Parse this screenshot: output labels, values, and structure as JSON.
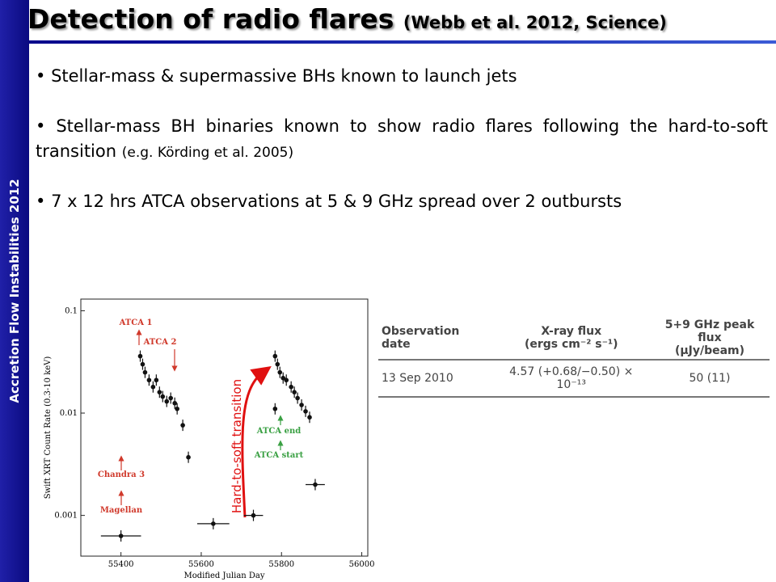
{
  "sidebar": "Accretion Flow Instabilities 2012",
  "header": {
    "title": "Detection of radio flares",
    "citation": "(Webb et al. 2012, Science)"
  },
  "bullets": [
    {
      "text": "Stellar-mass & supermassive BHs known to launch jets"
    },
    {
      "text": "Stellar-mass BH binaries known to show radio flares following the hard-to-soft transition",
      "note": "(e.g. Körding et al. 2005)"
    },
    {
      "text": "7 x 12 hrs ATCA  observations at 5 & 9 GHz spread over 2 outbursts"
    }
  ],
  "chart_data": {
    "type": "scatter",
    "log_y": true,
    "x_label": "Modified Julian Day",
    "y_label": "Swift XRT Count Rate (0.3-10 keV)",
    "color": "#111111",
    "x": [
      55448,
      55454,
      55460,
      55470,
      55480,
      55488,
      55496,
      55504,
      55514,
      55524,
      55534,
      55540,
      55554,
      55568,
      55400,
      55630,
      55730,
      55784,
      55790,
      55796,
      55804,
      55812,
      55824,
      55832,
      55840,
      55850,
      55860,
      55870,
      55784,
      55884
    ],
    "y": [
      0.036,
      0.03,
      0.025,
      0.021,
      0.018,
      0.021,
      0.016,
      0.0145,
      0.013,
      0.014,
      0.0125,
      0.011,
      0.0076,
      0.0037,
      0.00063,
      0.00083,
      0.001,
      0.036,
      0.03,
      0.025,
      0.022,
      0.021,
      0.018,
      0.016,
      0.014,
      0.012,
      0.0104,
      0.0091,
      0.011,
      0.002
    ],
    "xerr": [
      null,
      null,
      null,
      null,
      null,
      null,
      null,
      null,
      null,
      null,
      null,
      null,
      null,
      null,
      50,
      40,
      24,
      null,
      null,
      null,
      null,
      null,
      null,
      null,
      null,
      null,
      null,
      null,
      null,
      24
    ],
    "xlim": [
      55300,
      56015
    ],
    "ylim": [
      0.0004,
      0.13
    ],
    "xticks": [
      55400,
      55600,
      55800,
      56000
    ],
    "yticks": [
      0.1,
      0.01,
      0.001
    ],
    "annotations": [
      "ATCA 1",
      "ATCA 2",
      "Chandra 3",
      "Magellan",
      "ATCA end",
      "ATCA start",
      "Hard-to-soft transition"
    ]
  },
  "table": {
    "header": [
      "Observation date",
      "X-ray flux",
      "(ergs cm⁻² s⁻¹)",
      "5+9 GHz peak flux",
      "(μJy/beam)"
    ],
    "rows": [
      [
        "13 Sep 2010",
        "4.57 (+0.68/−0.50) × 10⁻¹³",
        "50 (11)"
      ]
    ]
  }
}
